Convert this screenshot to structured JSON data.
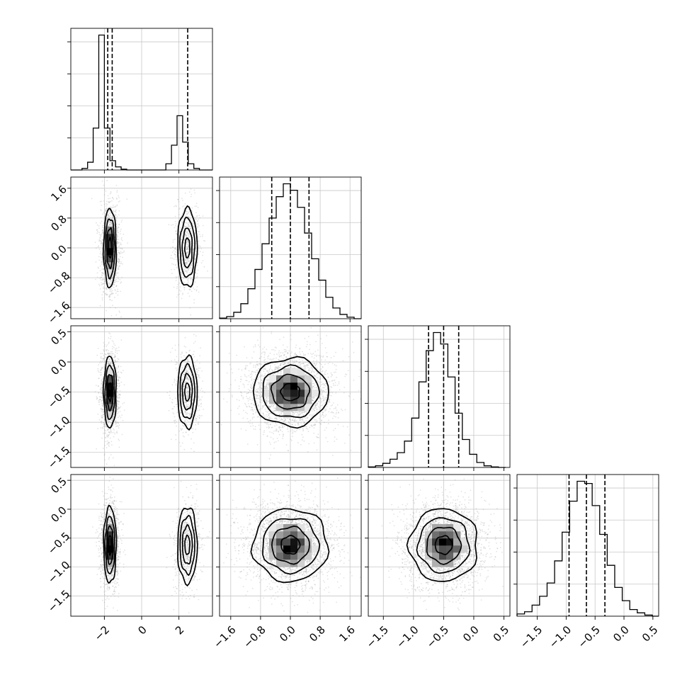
{
  "chart_data": {
    "type": "corner",
    "parameters": [
      {
        "range": [
          -3.8,
          3.8
        ],
        "ticks": [
          -2,
          0,
          2
        ],
        "tick_labels": [
          "−2",
          "0",
          "2"
        ],
        "quantiles": [
          -1.82,
          -1.58,
          2.47
        ],
        "histogram": {
          "bin_edges": [
            -3.8,
            -3.5,
            -3.2,
            -2.9,
            -2.6,
            -2.3,
            -2.0,
            -1.7,
            -1.4,
            -1.1,
            -0.8,
            -0.5,
            -0.2,
            0.1,
            0.4,
            0.7,
            1.0,
            1.3,
            1.6,
            1.9,
            2.2,
            2.5,
            2.8,
            3.1,
            3.4,
            3.8
          ],
          "counts": [
            0,
            0,
            0.01,
            0.05,
            0.27,
            0.87,
            0.27,
            0.06,
            0.02,
            0.005,
            0,
            0,
            0,
            0,
            0,
            0,
            0,
            0.04,
            0.16,
            0.35,
            0.18,
            0.04,
            0.01,
            0,
            0
          ]
        }
      },
      {
        "range": [
          -1.9,
          1.9
        ],
        "ticks": [
          -1.6,
          -0.8,
          0.0,
          0.8,
          1.6
        ],
        "tick_labels": [
          "−1.6",
          "−0.8",
          "0.0",
          "0.8",
          "1.6"
        ],
        "quantiles": [
          -0.5,
          0.0,
          0.5
        ],
        "histogram": {
          "bin_edges": [
            -1.9,
            -1.71,
            -1.52,
            -1.33,
            -1.14,
            -0.95,
            -0.76,
            -0.57,
            -0.38,
            -0.19,
            0.0,
            0.19,
            0.38,
            0.57,
            0.76,
            0.95,
            1.14,
            1.33,
            1.52,
            1.71,
            1.9
          ],
          "counts": [
            0.003,
            0.01,
            0.03,
            0.07,
            0.14,
            0.23,
            0.35,
            0.47,
            0.57,
            0.63,
            0.6,
            0.52,
            0.4,
            0.28,
            0.18,
            0.1,
            0.05,
            0.02,
            0.007,
            0
          ]
        }
      },
      {
        "range": [
          -1.75,
          0.6
        ],
        "ticks": [
          -1.5,
          -1.0,
          -0.5,
          0.0,
          0.5
        ],
        "tick_labels": [
          "−1.5",
          "−1.0",
          "−0.5",
          "0.0",
          "0.5"
        ],
        "quantiles": [
          -0.75,
          -0.5,
          -0.25
        ],
        "histogram": {
          "bin_edges": [
            -1.75,
            -1.63,
            -1.51,
            -1.39,
            -1.27,
            -1.15,
            -1.03,
            -0.91,
            -0.79,
            -0.67,
            -0.55,
            -0.43,
            -0.31,
            -0.19,
            -0.07,
            0.05,
            0.17,
            0.29,
            0.41,
            0.53
          ],
          "counts": [
            0.003,
            0.01,
            0.025,
            0.05,
            0.09,
            0.16,
            0.3,
            0.52,
            0.71,
            0.82,
            0.75,
            0.55,
            0.33,
            0.17,
            0.08,
            0.03,
            0.01,
            0.003,
            0
          ]
        }
      },
      {
        "range": [
          -1.85,
          0.6
        ],
        "ticks": [
          -1.5,
          -1.0,
          -0.5,
          0.0,
          0.5
        ],
        "tick_labels": [
          "−1.5",
          "−1.0",
          "−0.5",
          "0.0",
          "0.5"
        ],
        "quantiles": [
          -0.95,
          -0.65,
          -0.33
        ],
        "histogram": {
          "bin_edges": [
            -1.85,
            -1.72,
            -1.59,
            -1.46,
            -1.33,
            -1.2,
            -1.07,
            -0.94,
            -0.81,
            -0.68,
            -0.55,
            -0.42,
            -0.29,
            -0.16,
            -0.03,
            0.1,
            0.23,
            0.36,
            0.49,
            0.6
          ],
          "counts": [
            0.01,
            0.02,
            0.05,
            0.09,
            0.15,
            0.25,
            0.38,
            0.52,
            0.61,
            0.6,
            0.5,
            0.37,
            0.23,
            0.13,
            0.07,
            0.03,
            0.015,
            0.005,
            0
          ]
        }
      }
    ],
    "contour_levels_sigma": [
      0.5,
      1.0,
      1.5,
      2.0
    ],
    "modes_param1": [
      {
        "mean": -1.7,
        "sd": 0.18,
        "weight": 0.67
      },
      {
        "mean": 2.45,
        "sd": 0.25,
        "weight": 0.33
      }
    ],
    "param_means": [
      0,
      0.0,
      -0.5,
      -0.62
    ],
    "param_sds": [
      0,
      0.48,
      0.27,
      0.3
    ],
    "grid": true,
    "layout": "lower-triangular corner plot"
  }
}
